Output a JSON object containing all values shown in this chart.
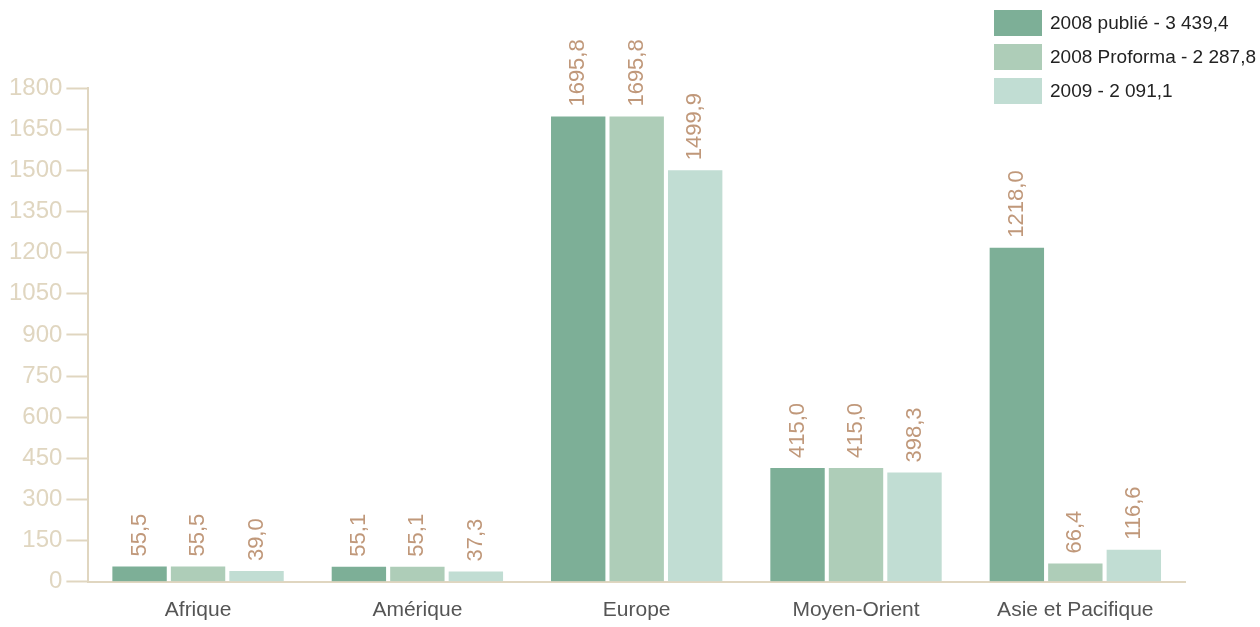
{
  "chart_data": {
    "type": "bar",
    "categories": [
      "Afrique",
      "Amérique",
      "Europe",
      "Moyen-Orient",
      "Asie et Pacifique"
    ],
    "series": [
      {
        "name": "2008 publié - 3 439,4",
        "color": "#7daf97",
        "values": [
          55.5,
          55.1,
          1695.8,
          415.0,
          1218.0
        ],
        "value_labels": [
          "55,5",
          "55,1",
          "1695,8",
          "415,0",
          "1218,0"
        ]
      },
      {
        "name": "2008 Proforma - 2 287,8",
        "color": "#aecdb8",
        "values": [
          55.5,
          55.1,
          1695.8,
          415.0,
          66.4
        ],
        "value_labels": [
          "55,5",
          "55,1",
          "1695,8",
          "415,0",
          "66,4"
        ]
      },
      {
        "name": "2009 - 2 091,1",
        "color": "#c1ddd3",
        "values": [
          39.0,
          37.3,
          1499.9,
          398.3,
          116.6
        ],
        "value_labels": [
          "39,0",
          "37,3",
          "1499,9",
          "398,3",
          "116,6"
        ]
      }
    ],
    "ylim": [
      0,
      1800
    ],
    "yticks": [
      0,
      150,
      300,
      450,
      600,
      750,
      900,
      1050,
      1200,
      1350,
      1500,
      1650,
      1800
    ],
    "grid": false,
    "legend": "top right"
  }
}
